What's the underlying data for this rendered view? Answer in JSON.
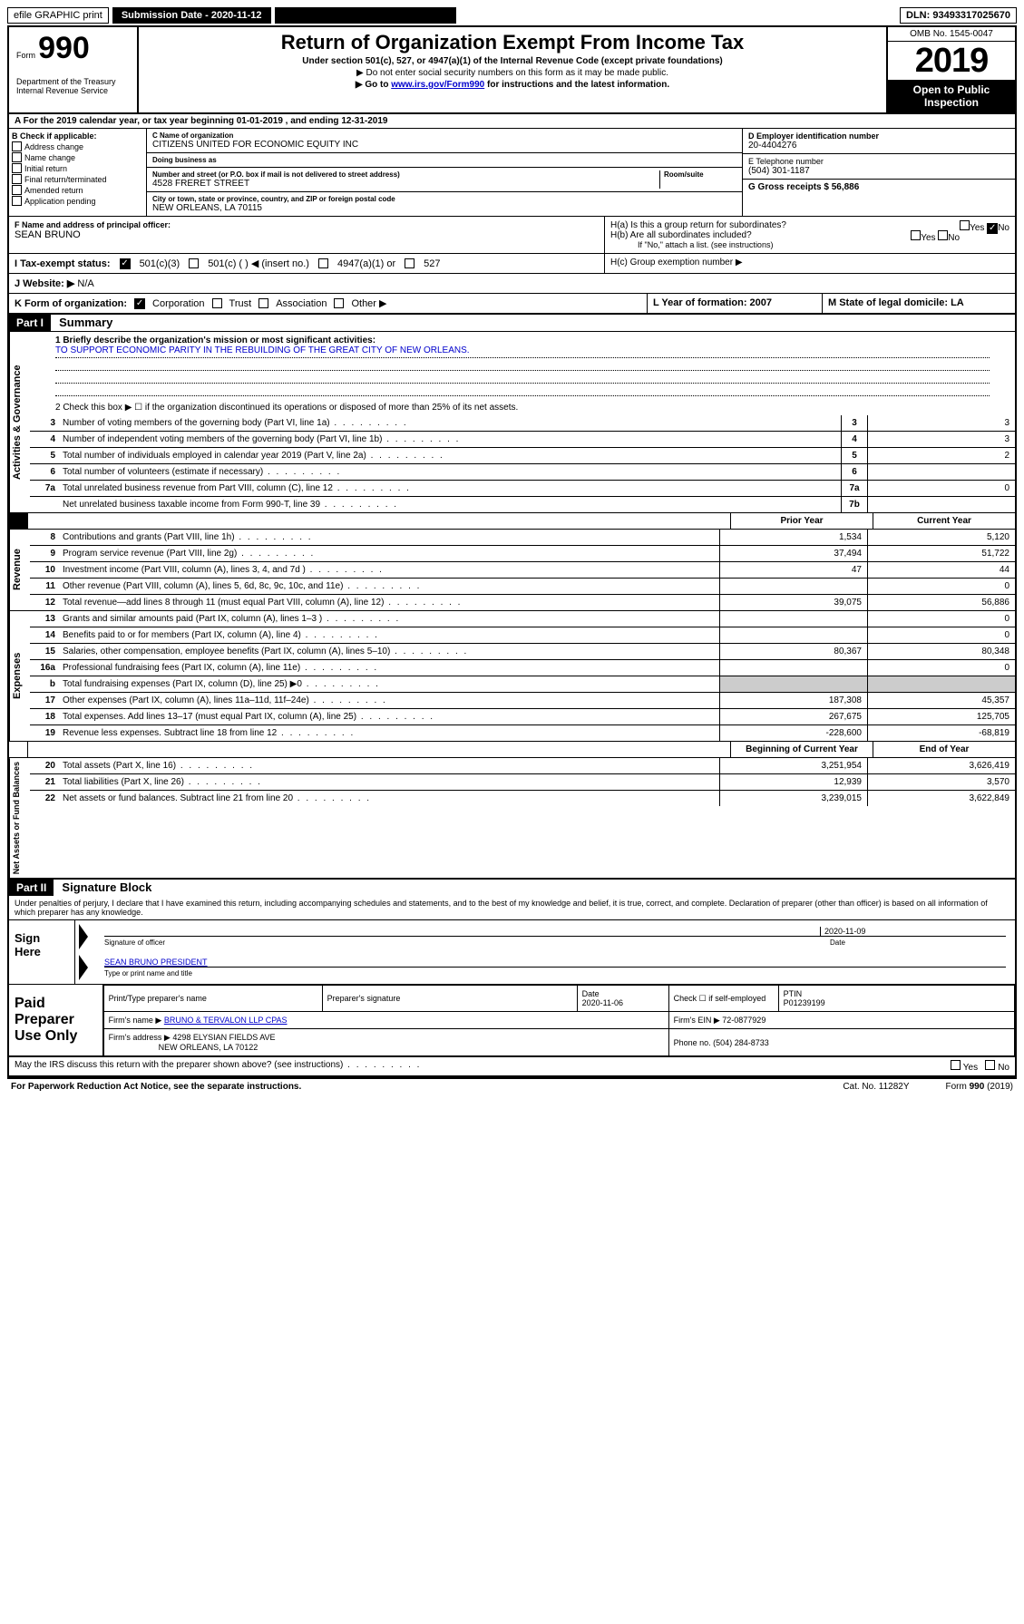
{
  "topbar": {
    "efile": "efile GRAPHIC print",
    "submission_label": "Submission Date - 2020-11-12",
    "dln": "DLN: 93493317025670"
  },
  "header": {
    "form_label": "Form",
    "form_number": "990",
    "dept": "Department of the Treasury\nInternal Revenue Service",
    "title": "Return of Organization Exempt From Income Tax",
    "under_section": "Under section 501(c), 527, or 4947(a)(1) of the Internal Revenue Code (except private foundations)",
    "no_ssn": "▶ Do not enter social security numbers on this form as it may be made public.",
    "go_to_pre": "▶ Go to ",
    "go_to_link": "www.irs.gov/Form990",
    "go_to_post": " for instructions and the latest information.",
    "omb": "OMB No. 1545-0047",
    "year": "2019",
    "open_pub": "Open to Public Inspection"
  },
  "row_a": "A For the 2019 calendar year, or tax year beginning 01-01-2019   , and ending 12-31-2019",
  "col_b": {
    "label": "B Check if applicable:",
    "items": [
      "Address change",
      "Name change",
      "Initial return",
      "Final return/terminated",
      "Amended return",
      "Application pending"
    ]
  },
  "col_c": {
    "name_label": "C Name of organization",
    "name": "CITIZENS UNITED FOR ECONOMIC EQUITY INC",
    "dba_label": "Doing business as",
    "addr_label": "Number and street (or P.O. box if mail is not delivered to street address)",
    "room_label": "Room/suite",
    "address": "4528 FRERET STREET",
    "city_label": "City or town, state or province, country, and ZIP or foreign postal code",
    "city": "NEW ORLEANS, LA  70115"
  },
  "col_d": {
    "ein_label": "D Employer identification number",
    "ein": "20-4404276",
    "phone_label": "E Telephone number",
    "phone": "(504) 301-1187",
    "gross_label": "G Gross receipts $ 56,886"
  },
  "row_f": {
    "label": "F  Name and address of principal officer:",
    "name": "SEAN BRUNO"
  },
  "row_h": {
    "ha": "H(a)  Is this a group return for subordinates?",
    "hb": "H(b)  Are all subordinates included?",
    "hb_note": "If \"No,\" attach a list. (see instructions)",
    "hc": "H(c)  Group exemption number ▶",
    "yes": "Yes",
    "no": "No"
  },
  "row_i": {
    "label": "I   Tax-exempt status:",
    "opt1": "501(c)(3)",
    "opt2": "501(c) (  ) ◀ (insert no.)",
    "opt3": "4947(a)(1) or",
    "opt4": "527"
  },
  "row_j": {
    "label": "J   Website: ▶",
    "val": "N/A"
  },
  "row_k": {
    "label": "K Form of organization:",
    "opts": [
      "Corporation",
      "Trust",
      "Association",
      "Other ▶"
    ],
    "l": "L Year of formation: 2007",
    "m": "M State of legal domicile: LA"
  },
  "part1": {
    "header": "Part I",
    "title": "Summary",
    "q1_label": "1  Briefly describe the organization's mission or most significant activities:",
    "q1_val": "TO SUPPORT ECONOMIC PARITY IN THE REBUILDING OF THE GREAT CITY OF NEW ORLEANS.",
    "q2": "2   Check this box ▶ ☐  if the organization discontinued its operations or disposed of more than 25% of its net assets.",
    "vert_governance": "Activities & Governance",
    "vert_revenue": "Revenue",
    "vert_expenses": "Expenses",
    "vert_net": "Net Assets or Fund Balances",
    "prior_year": "Prior Year",
    "current_year": "Current Year",
    "begin_year": "Beginning of Current Year",
    "end_year": "End of Year",
    "governance_rows": [
      {
        "n": "3",
        "d": "Number of voting members of the governing body (Part VI, line 1a)",
        "c": "3",
        "v": "3"
      },
      {
        "n": "4",
        "d": "Number of independent voting members of the governing body (Part VI, line 1b)",
        "c": "4",
        "v": "3"
      },
      {
        "n": "5",
        "d": "Total number of individuals employed in calendar year 2019 (Part V, line 2a)",
        "c": "5",
        "v": "2"
      },
      {
        "n": "6",
        "d": "Total number of volunteers (estimate if necessary)",
        "c": "6",
        "v": ""
      },
      {
        "n": "7a",
        "d": "Total unrelated business revenue from Part VIII, column (C), line 12",
        "c": "7a",
        "v": "0"
      },
      {
        "n": "",
        "d": "Net unrelated business taxable income from Form 990-T, line 39",
        "c": "7b",
        "v": ""
      }
    ],
    "revenue_rows": [
      {
        "n": "8",
        "d": "Contributions and grants (Part VIII, line 1h)",
        "p": "1,534",
        "c": "5,120"
      },
      {
        "n": "9",
        "d": "Program service revenue (Part VIII, line 2g)",
        "p": "37,494",
        "c": "51,722"
      },
      {
        "n": "10",
        "d": "Investment income (Part VIII, column (A), lines 3, 4, and 7d )",
        "p": "47",
        "c": "44"
      },
      {
        "n": "11",
        "d": "Other revenue (Part VIII, column (A), lines 5, 6d, 8c, 9c, 10c, and 11e)",
        "p": "",
        "c": "0"
      },
      {
        "n": "12",
        "d": "Total revenue—add lines 8 through 11 (must equal Part VIII, column (A), line 12)",
        "p": "39,075",
        "c": "56,886"
      }
    ],
    "expense_rows": [
      {
        "n": "13",
        "d": "Grants and similar amounts paid (Part IX, column (A), lines 1–3 )",
        "p": "",
        "c": "0"
      },
      {
        "n": "14",
        "d": "Benefits paid to or for members (Part IX, column (A), line 4)",
        "p": "",
        "c": "0"
      },
      {
        "n": "15",
        "d": "Salaries, other compensation, employee benefits (Part IX, column (A), lines 5–10)",
        "p": "80,367",
        "c": "80,348"
      },
      {
        "n": "16a",
        "d": "Professional fundraising fees (Part IX, column (A), line 11e)",
        "p": "",
        "c": "0"
      },
      {
        "n": "b",
        "d": "Total fundraising expenses (Part IX, column (D), line 25) ▶0",
        "p": "GREY",
        "c": "GREY"
      },
      {
        "n": "17",
        "d": "Other expenses (Part IX, column (A), lines 11a–11d, 11f–24e)",
        "p": "187,308",
        "c": "45,357"
      },
      {
        "n": "18",
        "d": "Total expenses. Add lines 13–17 (must equal Part IX, column (A), line 25)",
        "p": "267,675",
        "c": "125,705"
      },
      {
        "n": "19",
        "d": "Revenue less expenses. Subtract line 18 from line 12",
        "p": "-228,600",
        "c": "-68,819"
      }
    ],
    "net_rows": [
      {
        "n": "20",
        "d": "Total assets (Part X, line 16)",
        "p": "3,251,954",
        "c": "3,626,419"
      },
      {
        "n": "21",
        "d": "Total liabilities (Part X, line 26)",
        "p": "12,939",
        "c": "3,570"
      },
      {
        "n": "22",
        "d": "Net assets or fund balances. Subtract line 21 from line 20",
        "p": "3,239,015",
        "c": "3,622,849"
      }
    ]
  },
  "part2": {
    "header": "Part II",
    "title": "Signature Block",
    "perjury": "Under penalties of perjury, I declare that I have examined this return, including accompanying schedules and statements, and to the best of my knowledge and belief, it is true, correct, and complete. Declaration of preparer (other than officer) is based on all information of which preparer has any knowledge.",
    "sign_here": "Sign Here",
    "sig_date": "2020-11-09",
    "sig_officer": "Signature of officer",
    "date_lbl": "Date",
    "name_title": "SEAN BRUNO PRESIDENT",
    "name_title_lbl": "Type or print name and title",
    "paid": "Paid Preparer Use Only",
    "prep_name_lbl": "Print/Type preparer's name",
    "prep_sig_lbl": "Preparer's signature",
    "prep_date_lbl": "Date",
    "prep_date": "2020-11-06",
    "check_self": "Check ☐ if self-employed",
    "ptin_lbl": "PTIN",
    "ptin": "P01239199",
    "firm_name_lbl": "Firm's name    ▶",
    "firm_name": "BRUNO & TERVALON LLP CPAS",
    "firm_ein": "Firm's EIN ▶ 72-0877929",
    "firm_addr_lbl": "Firm's address ▶",
    "firm_addr": "4298 ELYSIAN FIELDS AVE",
    "firm_city": "NEW ORLEANS, LA  70122",
    "firm_phone": "Phone no. (504) 284-8733"
  },
  "footer": {
    "discuss": "May the IRS discuss this return with the preparer shown above? (see instructions)",
    "paperwork": "For Paperwork Reduction Act Notice, see the separate instructions.",
    "cat": "Cat. No. 11282Y",
    "form": "Form 990 (2019)"
  }
}
